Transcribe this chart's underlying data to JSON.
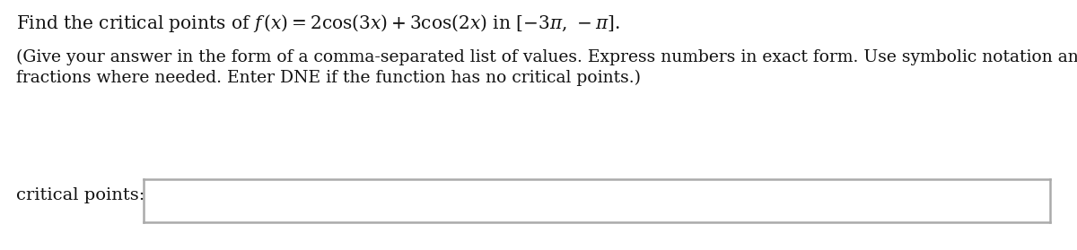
{
  "line1": "Find the critical points of $f\\,(x) = 2\\cos(3x) + 3\\cos(2x)$ in $[-3\\pi,\\,-\\pi].$",
  "line2": "(Give your answer in the form of a comma-separated list of values. Express numbers in exact form. Use symbolic notation and",
  "line3": "fractions where needed. Enter DNE if the function has no critical points.)",
  "label": "critical points:",
  "background_color": "#ffffff",
  "text_color": "#111111",
  "box_border_color": "#aaaaaa",
  "box_fill_color": "#ffffff",
  "font_size_line1": 14.5,
  "font_size_body": 13.5,
  "font_size_label": 14.0
}
